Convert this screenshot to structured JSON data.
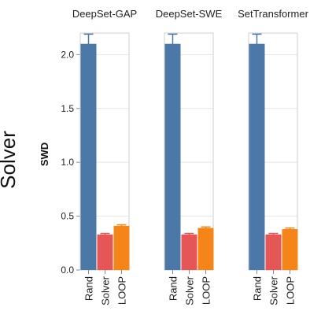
{
  "row_label": "Solver",
  "chart_data": {
    "type": "bar",
    "ylabel": "SWD",
    "ylim": [
      0,
      2.2
    ],
    "yticks": [
      0.0,
      0.5,
      1.0,
      1.5,
      2.0
    ],
    "ytick_labels": [
      "0.0",
      "0.5",
      "1.0",
      "1.5",
      "2.0"
    ],
    "categories": [
      "Rand",
      "Solver",
      "LOOP"
    ],
    "colors": {
      "Rand": "#4c78a8",
      "Solver": "#e45756",
      "LOOP": "#f58518"
    },
    "grid": true,
    "panels": [
      {
        "title": "DeepSet-GAP",
        "values": [
          2.1,
          0.33,
          0.41
        ],
        "errors": [
          0.09,
          0.01,
          0.01
        ]
      },
      {
        "title": "DeepSet-SWE",
        "values": [
          2.1,
          0.33,
          0.39
        ],
        "errors": [
          0.09,
          0.01,
          0.01
        ]
      },
      {
        "title": "SetTransformer",
        "values": [
          2.1,
          0.33,
          0.38
        ],
        "errors": [
          0.09,
          0.01,
          0.01
        ]
      }
    ]
  }
}
